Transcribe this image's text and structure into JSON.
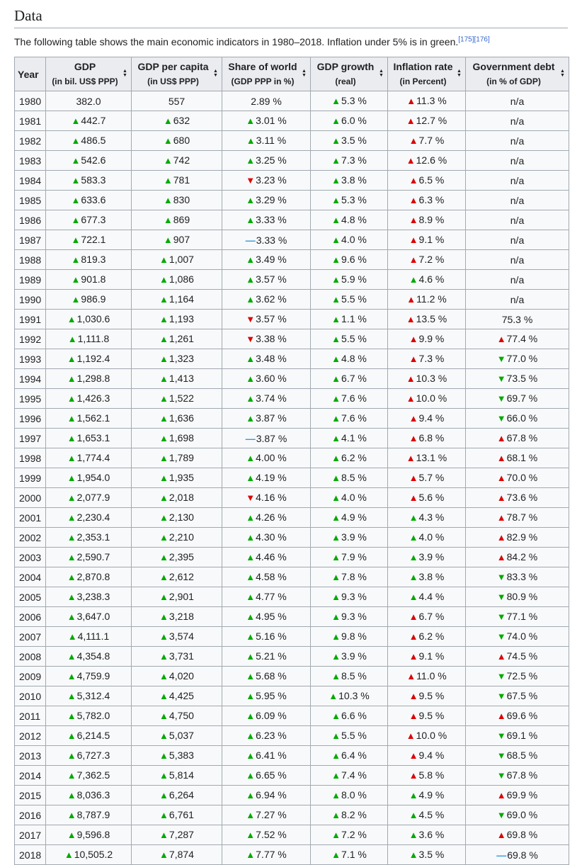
{
  "heading": "Data",
  "intro": "The following table shows the main economic indicators in 1980–2018. Inflation under 5% is in green.",
  "refs": [
    "[175]",
    "[176]"
  ],
  "columns": [
    {
      "main": "Year",
      "sub": ""
    },
    {
      "main": "GDP",
      "sub": "(in bil. US$ PPP)"
    },
    {
      "main": "GDP per capita",
      "sub": "(in US$ PPP)"
    },
    {
      "main": "Share of world",
      "sub": "(GDP PPP in %)"
    },
    {
      "main": "GDP growth",
      "sub": "(real)"
    },
    {
      "main": "Inflation rate",
      "sub": "(in Percent)"
    },
    {
      "main": "Government debt",
      "sub": "(in % of GDP)"
    }
  ],
  "trend_legend": {
    "u": "increase-green",
    "r": "increase-red",
    "d": "decrease-red",
    "g": "decrease-green",
    "s": "unchanged",
    "n": "none"
  },
  "rows": [
    [
      "1980",
      [
        "n",
        "382.0"
      ],
      [
        "n",
        "557"
      ],
      [
        "n",
        "2.89 %"
      ],
      [
        "u",
        "5.3 %"
      ],
      [
        "r",
        "11.3 %"
      ],
      [
        "n",
        "n/a"
      ]
    ],
    [
      "1981",
      [
        "u",
        "442.7"
      ],
      [
        "u",
        "632"
      ],
      [
        "u",
        "3.01 %"
      ],
      [
        "u",
        "6.0 %"
      ],
      [
        "r",
        "12.7 %"
      ],
      [
        "n",
        "n/a"
      ]
    ],
    [
      "1982",
      [
        "u",
        "486.5"
      ],
      [
        "u",
        "680"
      ],
      [
        "u",
        "3.11 %"
      ],
      [
        "u",
        "3.5 %"
      ],
      [
        "r",
        "7.7 %"
      ],
      [
        "n",
        "n/a"
      ]
    ],
    [
      "1983",
      [
        "u",
        "542.6"
      ],
      [
        "u",
        "742"
      ],
      [
        "u",
        "3.25 %"
      ],
      [
        "u",
        "7.3 %"
      ],
      [
        "r",
        "12.6 %"
      ],
      [
        "n",
        "n/a"
      ]
    ],
    [
      "1984",
      [
        "u",
        "583.3"
      ],
      [
        "u",
        "781"
      ],
      [
        "d",
        "3.23 %"
      ],
      [
        "u",
        "3.8 %"
      ],
      [
        "r",
        "6.5 %"
      ],
      [
        "n",
        "n/a"
      ]
    ],
    [
      "1985",
      [
        "u",
        "633.6"
      ],
      [
        "u",
        "830"
      ],
      [
        "u",
        "3.29 %"
      ],
      [
        "u",
        "5.3 %"
      ],
      [
        "r",
        "6.3 %"
      ],
      [
        "n",
        "n/a"
      ]
    ],
    [
      "1986",
      [
        "u",
        "677.3"
      ],
      [
        "u",
        "869"
      ],
      [
        "u",
        "3.33 %"
      ],
      [
        "u",
        "4.8 %"
      ],
      [
        "r",
        "8.9 %"
      ],
      [
        "n",
        "n/a"
      ]
    ],
    [
      "1987",
      [
        "u",
        "722.1"
      ],
      [
        "u",
        "907"
      ],
      [
        "s",
        "3.33 %"
      ],
      [
        "u",
        "4.0 %"
      ],
      [
        "r",
        "9.1 %"
      ],
      [
        "n",
        "n/a"
      ]
    ],
    [
      "1988",
      [
        "u",
        "819.3"
      ],
      [
        "u",
        "1,007"
      ],
      [
        "u",
        "3.49 %"
      ],
      [
        "u",
        "9.6 %"
      ],
      [
        "r",
        "7.2 %"
      ],
      [
        "n",
        "n/a"
      ]
    ],
    [
      "1989",
      [
        "u",
        "901.8"
      ],
      [
        "u",
        "1,086"
      ],
      [
        "u",
        "3.57 %"
      ],
      [
        "u",
        "5.9 %"
      ],
      [
        "u",
        "4.6 %"
      ],
      [
        "n",
        "n/a"
      ]
    ],
    [
      "1990",
      [
        "u",
        "986.9"
      ],
      [
        "u",
        "1,164"
      ],
      [
        "u",
        "3.62 %"
      ],
      [
        "u",
        "5.5 %"
      ],
      [
        "r",
        "11.2 %"
      ],
      [
        "n",
        "n/a"
      ]
    ],
    [
      "1991",
      [
        "u",
        "1,030.6"
      ],
      [
        "u",
        "1,193"
      ],
      [
        "d",
        "3.57 %"
      ],
      [
        "u",
        "1.1 %"
      ],
      [
        "r",
        "13.5 %"
      ],
      [
        "n",
        "75.3 %"
      ]
    ],
    [
      "1992",
      [
        "u",
        "1,111.8"
      ],
      [
        "u",
        "1,261"
      ],
      [
        "d",
        "3.38 %"
      ],
      [
        "u",
        "5.5 %"
      ],
      [
        "r",
        "9.9 %"
      ],
      [
        "r",
        "77.4 %"
      ]
    ],
    [
      "1993",
      [
        "u",
        "1,192.4"
      ],
      [
        "u",
        "1,323"
      ],
      [
        "u",
        "3.48 %"
      ],
      [
        "u",
        "4.8 %"
      ],
      [
        "r",
        "7.3 %"
      ],
      [
        "g",
        "77.0 %"
      ]
    ],
    [
      "1994",
      [
        "u",
        "1,298.8"
      ],
      [
        "u",
        "1,413"
      ],
      [
        "u",
        "3.60 %"
      ],
      [
        "u",
        "6.7 %"
      ],
      [
        "r",
        "10.3 %"
      ],
      [
        "g",
        "73.5 %"
      ]
    ],
    [
      "1995",
      [
        "u",
        "1,426.3"
      ],
      [
        "u",
        "1,522"
      ],
      [
        "u",
        "3.74 %"
      ],
      [
        "u",
        "7.6 %"
      ],
      [
        "r",
        "10.0 %"
      ],
      [
        "g",
        "69.7 %"
      ]
    ],
    [
      "1996",
      [
        "u",
        "1,562.1"
      ],
      [
        "u",
        "1,636"
      ],
      [
        "u",
        "3.87 %"
      ],
      [
        "u",
        "7.6 %"
      ],
      [
        "r",
        "9.4 %"
      ],
      [
        "g",
        "66.0 %"
      ]
    ],
    [
      "1997",
      [
        "u",
        "1,653.1"
      ],
      [
        "u",
        "1,698"
      ],
      [
        "s",
        "3.87 %"
      ],
      [
        "u",
        "4.1 %"
      ],
      [
        "r",
        "6.8 %"
      ],
      [
        "r",
        "67.8 %"
      ]
    ],
    [
      "1998",
      [
        "u",
        "1,774.4"
      ],
      [
        "u",
        "1,789"
      ],
      [
        "u",
        "4.00 %"
      ],
      [
        "u",
        "6.2 %"
      ],
      [
        "r",
        "13.1 %"
      ],
      [
        "r",
        "68.1 %"
      ]
    ],
    [
      "1999",
      [
        "u",
        "1,954.0"
      ],
      [
        "u",
        "1,935"
      ],
      [
        "u",
        "4.19 %"
      ],
      [
        "u",
        "8.5 %"
      ],
      [
        "r",
        "5.7 %"
      ],
      [
        "r",
        "70.0 %"
      ]
    ],
    [
      "2000",
      [
        "u",
        "2,077.9"
      ],
      [
        "u",
        "2,018"
      ],
      [
        "d",
        "4.16 %"
      ],
      [
        "u",
        "4.0 %"
      ],
      [
        "r",
        "5.6 %"
      ],
      [
        "r",
        "73.6 %"
      ]
    ],
    [
      "2001",
      [
        "u",
        "2,230.4"
      ],
      [
        "u",
        "2,130"
      ],
      [
        "u",
        "4.26 %"
      ],
      [
        "u",
        "4.9 %"
      ],
      [
        "u",
        "4.3 %"
      ],
      [
        "r",
        "78.7 %"
      ]
    ],
    [
      "2002",
      [
        "u",
        "2,353.1"
      ],
      [
        "u",
        "2,210"
      ],
      [
        "u",
        "4.30 %"
      ],
      [
        "u",
        "3.9 %"
      ],
      [
        "u",
        "4.0 %"
      ],
      [
        "r",
        "82.9 %"
      ]
    ],
    [
      "2003",
      [
        "u",
        "2,590.7"
      ],
      [
        "u",
        "2,395"
      ],
      [
        "u",
        "4.46 %"
      ],
      [
        "u",
        "7.9 %"
      ],
      [
        "u",
        "3.9 %"
      ],
      [
        "r",
        "84.2 %"
      ]
    ],
    [
      "2004",
      [
        "u",
        "2,870.8"
      ],
      [
        "u",
        "2,612"
      ],
      [
        "u",
        "4.58 %"
      ],
      [
        "u",
        "7.8 %"
      ],
      [
        "u",
        "3.8 %"
      ],
      [
        "g",
        "83.3 %"
      ]
    ],
    [
      "2005",
      [
        "u",
        "3,238.3"
      ],
      [
        "u",
        "2,901"
      ],
      [
        "u",
        "4.77 %"
      ],
      [
        "u",
        "9.3 %"
      ],
      [
        "u",
        "4.4 %"
      ],
      [
        "g",
        "80.9 %"
      ]
    ],
    [
      "2006",
      [
        "u",
        "3,647.0"
      ],
      [
        "u",
        "3,218"
      ],
      [
        "u",
        "4.95 %"
      ],
      [
        "u",
        "9.3 %"
      ],
      [
        "r",
        "6.7 %"
      ],
      [
        "g",
        "77.1 %"
      ]
    ],
    [
      "2007",
      [
        "u",
        "4,111.1"
      ],
      [
        "u",
        "3,574"
      ],
      [
        "u",
        "5.16 %"
      ],
      [
        "u",
        "9.8 %"
      ],
      [
        "r",
        "6.2 %"
      ],
      [
        "g",
        "74.0 %"
      ]
    ],
    [
      "2008",
      [
        "u",
        "4,354.8"
      ],
      [
        "u",
        "3,731"
      ],
      [
        "u",
        "5.21 %"
      ],
      [
        "u",
        "3.9 %"
      ],
      [
        "r",
        "9.1 %"
      ],
      [
        "r",
        "74.5 %"
      ]
    ],
    [
      "2009",
      [
        "u",
        "4,759.9"
      ],
      [
        "u",
        "4,020"
      ],
      [
        "u",
        "5.68 %"
      ],
      [
        "u",
        "8.5 %"
      ],
      [
        "r",
        "11.0 %"
      ],
      [
        "g",
        "72.5 %"
      ]
    ],
    [
      "2010",
      [
        "u",
        "5,312.4"
      ],
      [
        "u",
        "4,425"
      ],
      [
        "u",
        "5.95 %"
      ],
      [
        "u",
        "10.3 %"
      ],
      [
        "r",
        "9.5 %"
      ],
      [
        "g",
        "67.5 %"
      ]
    ],
    [
      "2011",
      [
        "u",
        "5,782.0"
      ],
      [
        "u",
        "4,750"
      ],
      [
        "u",
        "6.09 %"
      ],
      [
        "u",
        "6.6 %"
      ],
      [
        "r",
        "9.5 %"
      ],
      [
        "r",
        "69.6 %"
      ]
    ],
    [
      "2012",
      [
        "u",
        "6,214.5"
      ],
      [
        "u",
        "5,037"
      ],
      [
        "u",
        "6.23 %"
      ],
      [
        "u",
        "5.5 %"
      ],
      [
        "r",
        "10.0 %"
      ],
      [
        "g",
        "69.1 %"
      ]
    ],
    [
      "2013",
      [
        "u",
        "6,727.3"
      ],
      [
        "u",
        "5,383"
      ],
      [
        "u",
        "6.41 %"
      ],
      [
        "u",
        "6.4 %"
      ],
      [
        "r",
        "9.4 %"
      ],
      [
        "g",
        "68.5 %"
      ]
    ],
    [
      "2014",
      [
        "u",
        "7,362.5"
      ],
      [
        "u",
        "5,814"
      ],
      [
        "u",
        "6.65 %"
      ],
      [
        "u",
        "7.4 %"
      ],
      [
        "r",
        "5.8 %"
      ],
      [
        "g",
        "67.8 %"
      ]
    ],
    [
      "2015",
      [
        "u",
        "8,036.3"
      ],
      [
        "u",
        "6,264"
      ],
      [
        "u",
        "6.94 %"
      ],
      [
        "u",
        "8.0 %"
      ],
      [
        "u",
        "4.9 %"
      ],
      [
        "r",
        "69.9 %"
      ]
    ],
    [
      "2016",
      [
        "u",
        "8,787.9"
      ],
      [
        "u",
        "6,761"
      ],
      [
        "u",
        "7.27 %"
      ],
      [
        "u",
        "8.2 %"
      ],
      [
        "u",
        "4.5 %"
      ],
      [
        "g",
        "69.0 %"
      ]
    ],
    [
      "2017",
      [
        "u",
        "9,596.8"
      ],
      [
        "u",
        "7,287"
      ],
      [
        "u",
        "7.52 %"
      ],
      [
        "u",
        "7.2 %"
      ],
      [
        "u",
        "3.6 %"
      ],
      [
        "r",
        "69.8 %"
      ]
    ],
    [
      "2018",
      [
        "u",
        "10,505.2"
      ],
      [
        "u",
        "7,874"
      ],
      [
        "u",
        "7.77 %"
      ],
      [
        "u",
        "7.1 %"
      ],
      [
        "u",
        "3.5 %"
      ],
      [
        "s",
        "69.8 %"
      ]
    ]
  ]
}
